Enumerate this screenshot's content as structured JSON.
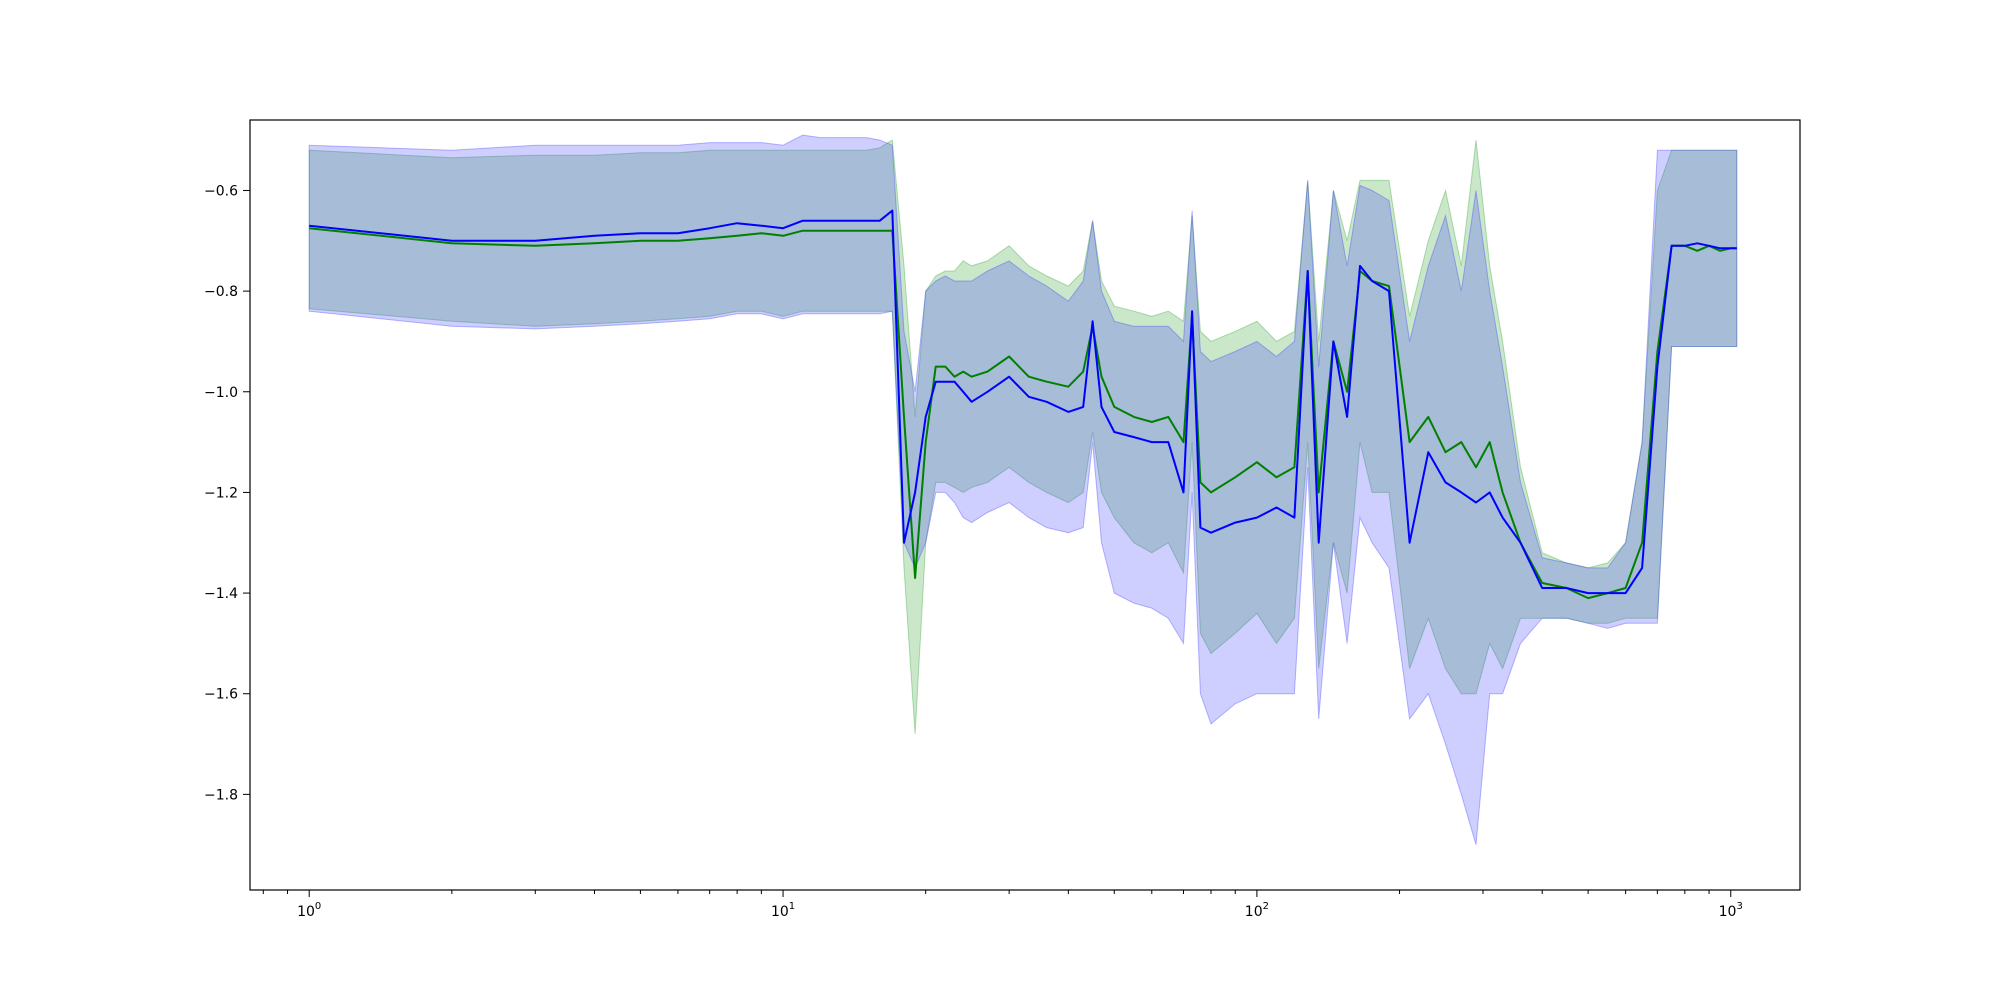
{
  "chart_data": {
    "type": "line",
    "title": "",
    "xlabel": "",
    "ylabel": "",
    "xscale": "log",
    "xlim": [
      0.75,
      1400
    ],
    "ylim": [
      -1.99,
      -0.46
    ],
    "grid": false,
    "x_ticks": [
      {
        "value": 1,
        "base": "10",
        "exp": "0"
      },
      {
        "value": 10,
        "base": "10",
        "exp": "1"
      },
      {
        "value": 100,
        "base": "10",
        "exp": "2"
      },
      {
        "value": 1000,
        "base": "10",
        "exp": "3"
      }
    ],
    "y_ticks": [
      {
        "value": -0.6,
        "label": "−0.6"
      },
      {
        "value": -0.8,
        "label": "−0.8"
      },
      {
        "value": -1.0,
        "label": "−1.0"
      },
      {
        "value": -1.2,
        "label": "−1.2"
      },
      {
        "value": -1.4,
        "label": "−1.4"
      },
      {
        "value": -1.6,
        "label": "−1.6"
      },
      {
        "value": -1.8,
        "label": "−1.8"
      }
    ],
    "series": [
      {
        "color": "#008000",
        "band_color": "#2ca02c",
        "x": [
          1,
          2,
          3,
          4,
          5,
          6,
          7,
          8,
          9,
          10,
          11,
          12,
          13,
          14,
          15,
          16,
          17,
          18,
          19,
          20,
          21,
          22,
          23,
          24,
          25,
          27,
          30,
          33,
          36,
          40,
          43,
          45,
          47,
          50,
          55,
          60,
          65,
          70,
          73,
          76,
          80,
          90,
          100,
          110,
          120,
          128,
          135,
          145,
          155,
          165,
          175,
          190,
          210,
          230,
          250,
          270,
          290,
          310,
          330,
          360,
          400,
          450,
          500,
          550,
          600,
          650,
          700,
          750,
          800,
          850,
          900,
          950,
          1000,
          1030
        ],
        "y": [
          -0.675,
          -0.705,
          -0.71,
          -0.705,
          -0.7,
          -0.7,
          -0.695,
          -0.69,
          -0.685,
          -0.69,
          -0.68,
          -0.68,
          -0.68,
          -0.68,
          -0.68,
          -0.68,
          -0.68,
          -1.05,
          -1.37,
          -1.1,
          -0.95,
          -0.95,
          -0.97,
          -0.96,
          -0.97,
          -0.96,
          -0.93,
          -0.97,
          -0.98,
          -0.99,
          -0.96,
          -0.87,
          -0.97,
          -1.03,
          -1.05,
          -1.06,
          -1.05,
          -1.1,
          -0.85,
          -1.18,
          -1.2,
          -1.17,
          -1.14,
          -1.17,
          -1.15,
          -0.76,
          -1.2,
          -0.9,
          -1.0,
          -0.76,
          -0.78,
          -0.79,
          -1.1,
          -1.05,
          -1.12,
          -1.1,
          -1.15,
          -1.1,
          -1.2,
          -1.3,
          -1.38,
          -1.39,
          -1.41,
          -1.4,
          -1.39,
          -1.3,
          -0.92,
          -0.71,
          -0.71,
          -0.72,
          -0.71,
          -0.72,
          -0.715,
          -0.715
        ],
        "lower": [
          -0.835,
          -0.86,
          -0.87,
          -0.865,
          -0.86,
          -0.855,
          -0.85,
          -0.84,
          -0.84,
          -0.85,
          -0.84,
          -0.84,
          -0.84,
          -0.84,
          -0.84,
          -0.84,
          -0.84,
          -1.35,
          -1.68,
          -1.3,
          -1.18,
          -1.18,
          -1.19,
          -1.2,
          -1.19,
          -1.18,
          -1.15,
          -1.18,
          -1.2,
          -1.22,
          -1.2,
          -1.08,
          -1.2,
          -1.25,
          -1.3,
          -1.32,
          -1.3,
          -1.36,
          -1.1,
          -1.48,
          -1.52,
          -1.48,
          -1.44,
          -1.5,
          -1.45,
          -1.1,
          -1.55,
          -1.3,
          -1.4,
          -1.1,
          -1.2,
          -1.2,
          -1.55,
          -1.45,
          -1.55,
          -1.6,
          -1.6,
          -1.5,
          -1.55,
          -1.45,
          -1.45,
          -1.45,
          -1.46,
          -1.46,
          -1.45,
          -1.45,
          -1.45,
          -0.91,
          -0.91,
          -0.91,
          -0.91,
          -0.91,
          -0.91,
          -0.91
        ],
        "upper": [
          -0.52,
          -0.535,
          -0.53,
          -0.53,
          -0.525,
          -0.525,
          -0.52,
          -0.52,
          -0.52,
          -0.52,
          -0.52,
          -0.52,
          -0.52,
          -0.52,
          -0.52,
          -0.515,
          -0.5,
          -0.75,
          -1.05,
          -0.8,
          -0.77,
          -0.76,
          -0.76,
          -0.74,
          -0.75,
          -0.74,
          -0.71,
          -0.75,
          -0.77,
          -0.79,
          -0.76,
          -0.66,
          -0.78,
          -0.83,
          -0.84,
          -0.85,
          -0.84,
          -0.86,
          -0.65,
          -0.88,
          -0.9,
          -0.88,
          -0.86,
          -0.9,
          -0.88,
          -0.58,
          -0.9,
          -0.6,
          -0.7,
          -0.58,
          -0.58,
          -0.58,
          -0.85,
          -0.7,
          -0.6,
          -0.75,
          -0.5,
          -0.75,
          -0.9,
          -1.15,
          -1.32,
          -1.34,
          -1.35,
          -1.34,
          -1.3,
          -1.1,
          -0.6,
          -0.52,
          -0.52,
          -0.52,
          -0.52,
          -0.52,
          -0.52,
          -0.52
        ]
      },
      {
        "color": "#0000ff",
        "band_color": "#3a3aff",
        "x": [
          1,
          2,
          3,
          4,
          5,
          6,
          7,
          8,
          9,
          10,
          11,
          12,
          13,
          14,
          15,
          16,
          17,
          18,
          19,
          20,
          21,
          22,
          23,
          24,
          25,
          27,
          30,
          33,
          36,
          40,
          43,
          45,
          47,
          50,
          55,
          60,
          65,
          70,
          73,
          76,
          80,
          90,
          100,
          110,
          120,
          128,
          135,
          145,
          155,
          165,
          175,
          190,
          210,
          230,
          250,
          270,
          290,
          310,
          330,
          360,
          400,
          450,
          500,
          550,
          600,
          650,
          700,
          750,
          800,
          850,
          900,
          950,
          1000,
          1030
        ],
        "y": [
          -0.67,
          -0.7,
          -0.7,
          -0.69,
          -0.685,
          -0.685,
          -0.675,
          -0.665,
          -0.67,
          -0.675,
          -0.66,
          -0.66,
          -0.66,
          -0.66,
          -0.66,
          -0.66,
          -0.64,
          -1.3,
          -1.2,
          -1.05,
          -0.98,
          -0.98,
          -0.98,
          -1.0,
          -1.02,
          -1.0,
          -0.97,
          -1.01,
          -1.02,
          -1.04,
          -1.03,
          -0.86,
          -1.03,
          -1.08,
          -1.09,
          -1.1,
          -1.1,
          -1.2,
          -0.84,
          -1.27,
          -1.28,
          -1.26,
          -1.25,
          -1.23,
          -1.25,
          -0.76,
          -1.3,
          -0.9,
          -1.05,
          -0.75,
          -0.78,
          -0.8,
          -1.3,
          -1.12,
          -1.18,
          -1.2,
          -1.22,
          -1.2,
          -1.25,
          -1.3,
          -1.39,
          -1.39,
          -1.4,
          -1.4,
          -1.4,
          -1.35,
          -0.95,
          -0.71,
          -0.71,
          -0.705,
          -0.71,
          -0.715,
          -0.715,
          -0.715
        ],
        "lower": [
          -0.84,
          -0.87,
          -0.875,
          -0.87,
          -0.865,
          -0.86,
          -0.855,
          -0.845,
          -0.845,
          -0.855,
          -0.845,
          -0.845,
          -0.845,
          -0.845,
          -0.845,
          -0.845,
          -0.84,
          -1.3,
          -1.35,
          -1.3,
          -1.2,
          -1.2,
          -1.22,
          -1.25,
          -1.26,
          -1.24,
          -1.22,
          -1.25,
          -1.27,
          -1.28,
          -1.27,
          -1.1,
          -1.3,
          -1.4,
          -1.42,
          -1.43,
          -1.45,
          -1.5,
          -1.2,
          -1.6,
          -1.66,
          -1.62,
          -1.6,
          -1.6,
          -1.6,
          -1.15,
          -1.65,
          -1.3,
          -1.5,
          -1.25,
          -1.3,
          -1.35,
          -1.65,
          -1.6,
          -1.7,
          -1.8,
          -1.9,
          -1.6,
          -1.6,
          -1.5,
          -1.45,
          -1.45,
          -1.46,
          -1.47,
          -1.46,
          -1.46,
          -1.46,
          -0.91,
          -0.91,
          -0.91,
          -0.91,
          -0.91,
          -0.91,
          -0.91
        ],
        "upper": [
          -0.51,
          -0.52,
          -0.51,
          -0.51,
          -0.51,
          -0.51,
          -0.505,
          -0.505,
          -0.505,
          -0.51,
          -0.49,
          -0.495,
          -0.495,
          -0.495,
          -0.495,
          -0.5,
          -0.51,
          -0.88,
          -1.0,
          -0.8,
          -0.78,
          -0.77,
          -0.78,
          -0.78,
          -0.78,
          -0.76,
          -0.74,
          -0.77,
          -0.79,
          -0.82,
          -0.78,
          -0.66,
          -0.8,
          -0.86,
          -0.87,
          -0.87,
          -0.87,
          -0.9,
          -0.64,
          -0.92,
          -0.94,
          -0.92,
          -0.9,
          -0.93,
          -0.9,
          -0.58,
          -0.95,
          -0.6,
          -0.75,
          -0.59,
          -0.6,
          -0.62,
          -0.9,
          -0.75,
          -0.65,
          -0.8,
          -0.6,
          -0.8,
          -0.95,
          -1.18,
          -1.33,
          -1.34,
          -1.35,
          -1.35,
          -1.3,
          -1.1,
          -0.52,
          -0.52,
          -0.52,
          -0.52,
          -0.52,
          -0.52,
          -0.52,
          -0.52
        ]
      }
    ]
  }
}
